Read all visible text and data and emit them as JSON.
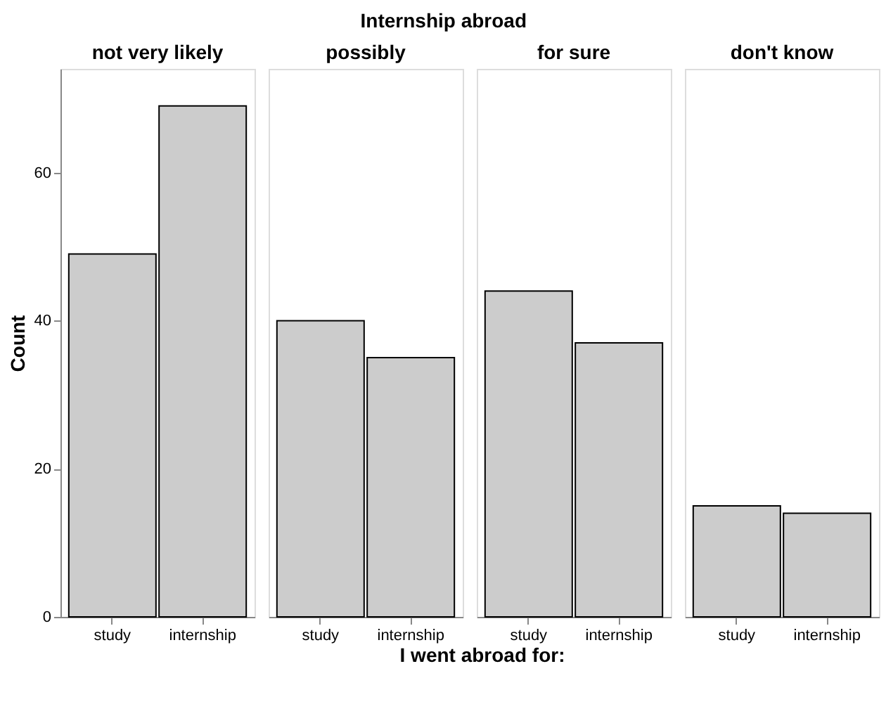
{
  "chart_data": [
    {
      "type": "bar",
      "title": "not very likely",
      "ylabel": "Count",
      "categories": [
        "study",
        "internship"
      ],
      "values": [
        49,
        69
      ],
      "color": "#cccccc",
      "ylim": [
        0,
        74
      ],
      "yticks": [
        0,
        20,
        40,
        60
      ],
      "grid": false,
      "annotations": [
        "Internship abroad",
        "I went abroad for:"
      ]
    },
    {
      "type": "bar",
      "title": "possibly",
      "categories": [
        "study",
        "internship"
      ],
      "values": [
        40,
        35
      ],
      "color": "#cccccc",
      "ylim": [
        0,
        74
      ],
      "tick_labels": "x",
      "grid": false
    },
    {
      "type": "bar",
      "title": "for sure",
      "categories": [
        "study",
        "internship"
      ],
      "values": [
        44,
        37
      ],
      "color": "#cccccc",
      "ylim": [
        0,
        74
      ],
      "tick_labels": "x",
      "grid": false
    },
    {
      "type": "bar",
      "title": "don't know",
      "categories": [
        "study",
        "internship"
      ],
      "values": [
        15,
        14
      ],
      "color": "#cccccc",
      "ylim": [
        0,
        74
      ],
      "tick_labels": "x",
      "grid": false
    }
  ]
}
